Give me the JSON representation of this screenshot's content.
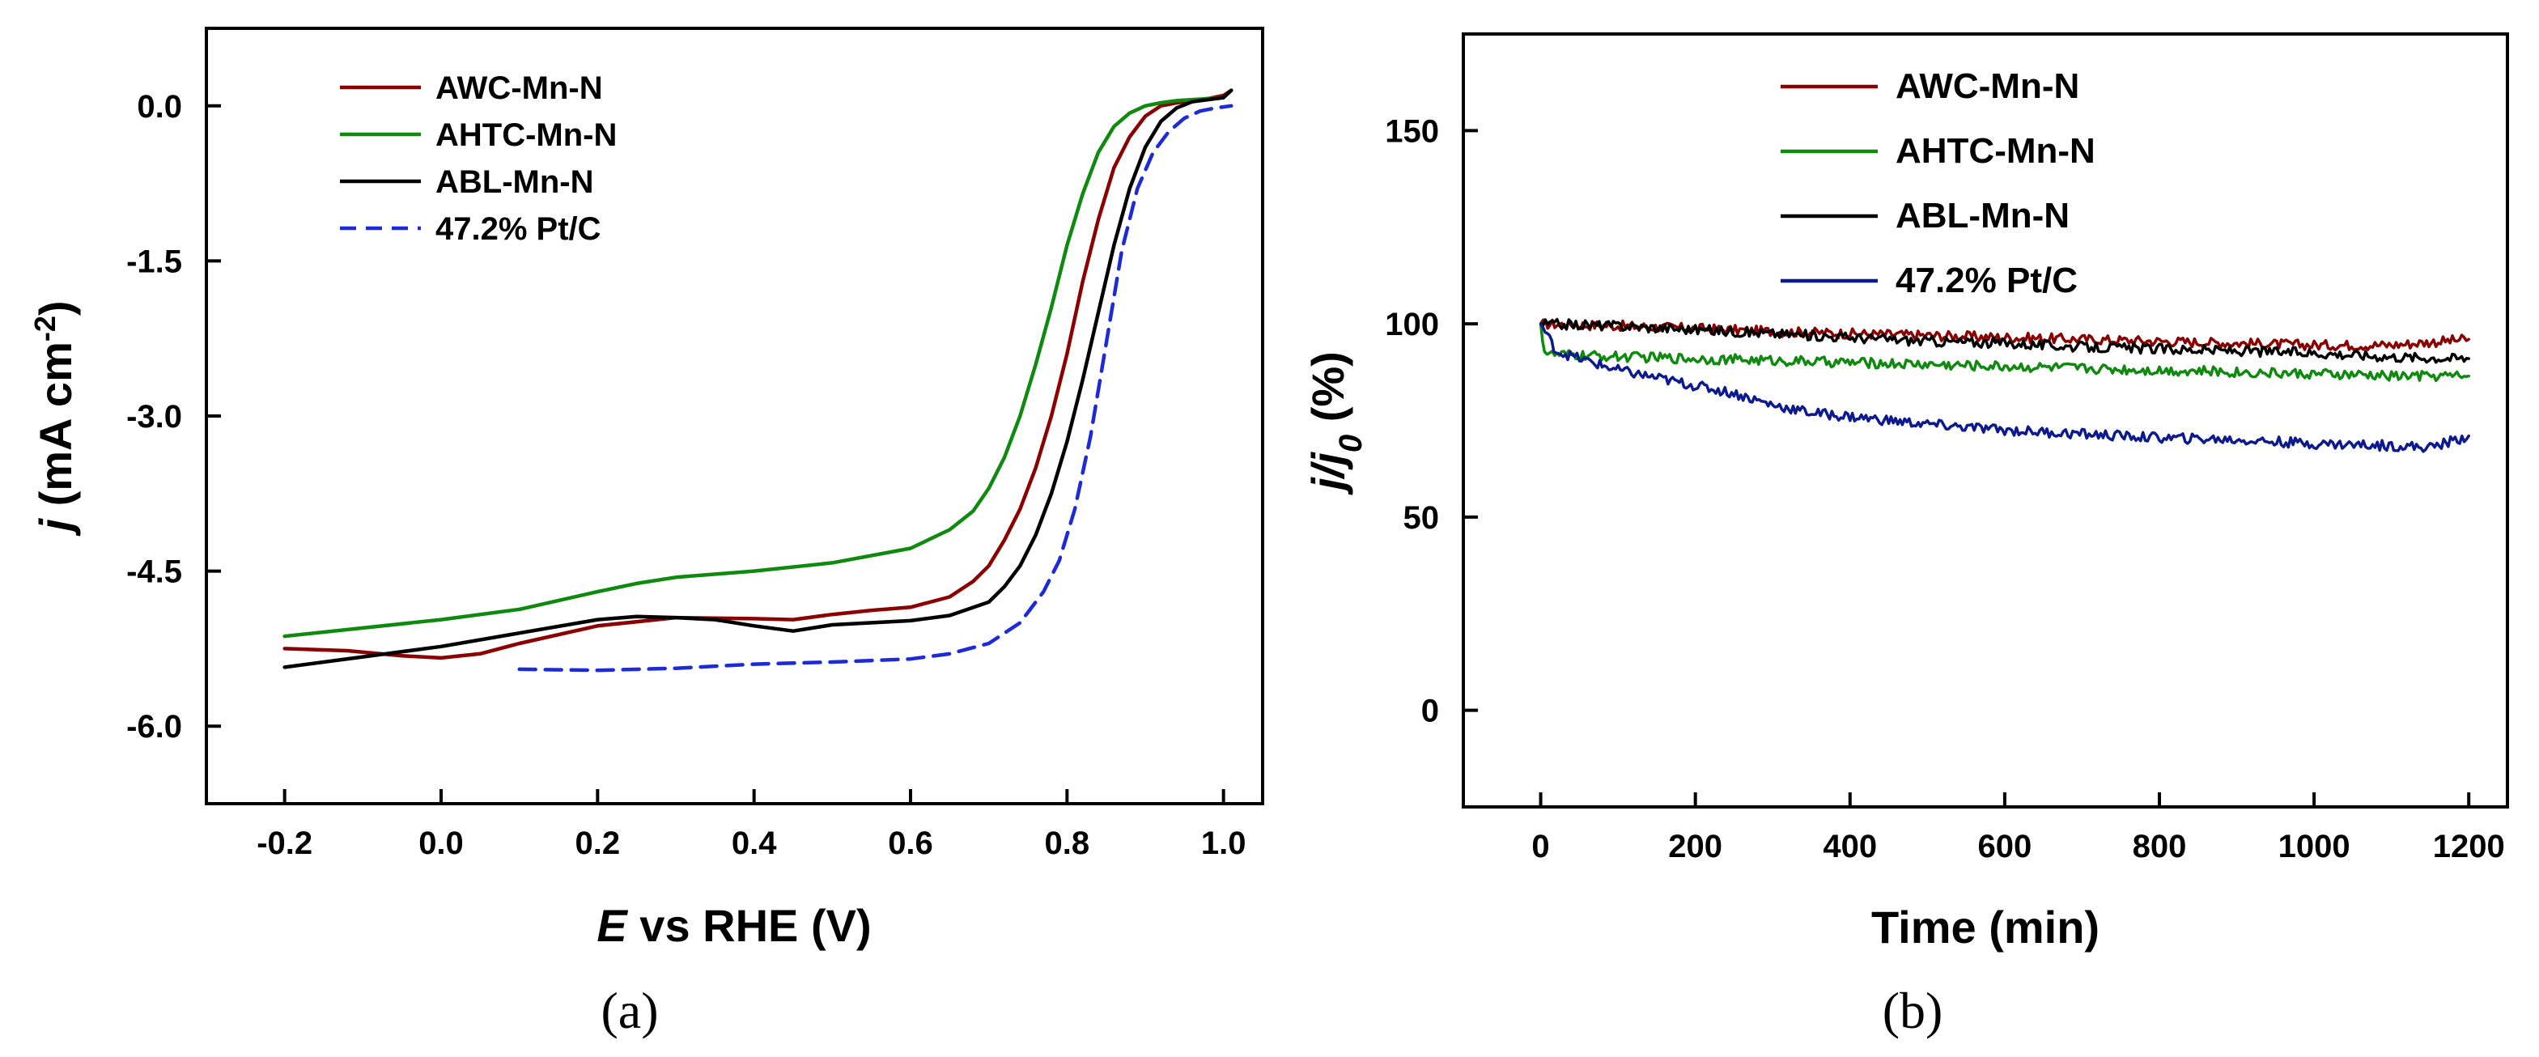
{
  "panels": [
    {
      "panel_label": "(a)",
      "chart_data": {
        "type": "line",
        "title": "",
        "xlabel_italic": "E",
        "xlabel_rest": " vs RHE (V)",
        "ylabel_italic": "j",
        "ylabel_rest": " (mA cm",
        "ylabel_sup": "-2",
        "ylabel_close": ")",
        "xlim": [
          -0.3,
          1.05
        ],
        "ylim": [
          -6.75,
          0.75
        ],
        "xticks": [
          -0.2,
          0.0,
          0.2,
          0.4,
          0.6,
          0.8,
          1.0
        ],
        "xtick_labels": [
          "-0.2",
          "0.0",
          "0.2",
          "0.4",
          "0.6",
          "0.8",
          "1.0"
        ],
        "yticks": [
          0.0,
          -1.5,
          -3.0,
          -4.5,
          -6.0
        ],
        "ytick_labels": [
          "0.0",
          "-1.5",
          "-3.0",
          "-4.5",
          "-6.0"
        ],
        "legend_position": "top-left",
        "series": [
          {
            "name": "AWC-Mn-N",
            "color": "#8b0000",
            "dash": "solid",
            "x": [
              -0.2,
              -0.12,
              -0.05,
              0.0,
              0.05,
              0.1,
              0.2,
              0.3,
              0.4,
              0.45,
              0.5,
              0.55,
              0.6,
              0.65,
              0.68,
              0.7,
              0.72,
              0.74,
              0.76,
              0.78,
              0.8,
              0.82,
              0.84,
              0.86,
              0.88,
              0.9,
              0.92,
              0.94,
              0.96,
              0.98,
              1.0,
              1.01
            ],
            "y": [
              -5.25,
              -5.27,
              -5.32,
              -5.34,
              -5.3,
              -5.2,
              -5.03,
              -4.95,
              -4.96,
              -4.97,
              -4.92,
              -4.88,
              -4.85,
              -4.75,
              -4.6,
              -4.45,
              -4.2,
              -3.9,
              -3.5,
              -3.0,
              -2.4,
              -1.7,
              -1.1,
              -0.6,
              -0.3,
              -0.1,
              0.0,
              0.03,
              0.05,
              0.07,
              0.1,
              0.15
            ]
          },
          {
            "name": "AHTC-Mn-N",
            "color": "#0f8a0f",
            "dash": "solid",
            "x": [
              -0.2,
              -0.1,
              0.0,
              0.1,
              0.2,
              0.25,
              0.3,
              0.4,
              0.5,
              0.6,
              0.65,
              0.68,
              0.7,
              0.72,
              0.74,
              0.76,
              0.78,
              0.8,
              0.82,
              0.84,
              0.86,
              0.88,
              0.9,
              0.92,
              0.94,
              0.96,
              0.98,
              1.0
            ],
            "y": [
              -5.13,
              -5.05,
              -4.97,
              -4.87,
              -4.7,
              -4.62,
              -4.56,
              -4.5,
              -4.42,
              -4.28,
              -4.1,
              -3.92,
              -3.7,
              -3.4,
              -3.0,
              -2.5,
              -1.95,
              -1.35,
              -0.85,
              -0.45,
              -0.2,
              -0.07,
              0.0,
              0.03,
              0.05,
              0.06,
              0.07,
              0.08
            ]
          },
          {
            "name": "ABL-Mn-N",
            "color": "#000000",
            "dash": "solid",
            "x": [
              -0.2,
              -0.1,
              0.0,
              0.1,
              0.2,
              0.25,
              0.3,
              0.35,
              0.4,
              0.45,
              0.5,
              0.6,
              0.65,
              0.7,
              0.72,
              0.74,
              0.76,
              0.78,
              0.8,
              0.82,
              0.84,
              0.86,
              0.88,
              0.9,
              0.92,
              0.94,
              0.96,
              0.98,
              1.0,
              1.01
            ],
            "y": [
              -5.43,
              -5.33,
              -5.23,
              -5.1,
              -4.97,
              -4.94,
              -4.95,
              -4.97,
              -5.03,
              -5.08,
              -5.02,
              -4.98,
              -4.93,
              -4.8,
              -4.65,
              -4.45,
              -4.15,
              -3.75,
              -3.25,
              -2.65,
              -2.0,
              -1.35,
              -0.8,
              -0.4,
              -0.15,
              -0.02,
              0.04,
              0.06,
              0.08,
              0.15
            ]
          },
          {
            "name": "47.2% Pt/C",
            "color": "#1c2bd6",
            "dash": "dashed",
            "x": [
              0.1,
              0.2,
              0.3,
              0.4,
              0.5,
              0.6,
              0.65,
              0.7,
              0.74,
              0.77,
              0.79,
              0.81,
              0.83,
              0.85,
              0.87,
              0.89,
              0.91,
              0.93,
              0.95,
              0.97,
              0.99,
              1.01
            ],
            "y": [
              -5.45,
              -5.46,
              -5.44,
              -5.4,
              -5.38,
              -5.35,
              -5.3,
              -5.2,
              -5.0,
              -4.7,
              -4.4,
              -3.9,
              -3.2,
              -2.3,
              -1.4,
              -0.8,
              -0.45,
              -0.25,
              -0.12,
              -0.05,
              -0.02,
              0.0
            ]
          }
        ]
      }
    },
    {
      "panel_label": "(b)",
      "chart_data": {
        "type": "line",
        "title": "",
        "xlabel": "Time (min)",
        "ylabel_italic": "j/j",
        "ylabel_sub": "0",
        "ylabel_rest": " (%)",
        "xlim": [
          -100,
          1250
        ],
        "ylim": [
          -25,
          175
        ],
        "xticks": [
          0,
          200,
          400,
          600,
          800,
          1000,
          1200
        ],
        "xtick_labels": [
          "0",
          "200",
          "400",
          "600",
          "800",
          "1000",
          "1200"
        ],
        "yticks": [
          0,
          50,
          100,
          150
        ],
        "ytick_labels": [
          "0",
          "50",
          "100",
          "150"
        ],
        "legend_position": "top-center",
        "series": [
          {
            "name": "AWC-Mn-N",
            "color": "#8b0000",
            "dash": "solid",
            "x": [
              0,
              100,
              200,
              300,
              400,
              500,
              600,
              700,
              800,
              900,
              1000,
              1100,
              1200
            ],
            "y": [
              100,
              99.5,
              98.8,
              98,
              97.5,
              97,
              96.5,
              96,
              95.5,
              95,
              94.5,
              94.5,
              96
            ]
          },
          {
            "name": "AHTC-Mn-N",
            "color": "#0f8a0f",
            "dash": "solid",
            "x": [
              0,
              5,
              15,
              100,
              200,
              300,
              400,
              500,
              600,
              700,
              800,
              900,
              1000,
              1100,
              1200
            ],
            "y": [
              100,
              93,
              92,
              91.5,
              91,
              90.5,
              90,
              89.5,
              89,
              88.5,
              88,
              87.5,
              87,
              86.5,
              86.5
            ]
          },
          {
            "name": "ABL-Mn-N",
            "color": "#000000",
            "dash": "solid",
            "x": [
              0,
              100,
              200,
              300,
              400,
              500,
              600,
              700,
              800,
              900,
              1000,
              1100,
              1200
            ],
            "y": [
              100,
              99.5,
              98.5,
              97.5,
              96.5,
              95.5,
              95,
              94,
              93.5,
              93,
              92.5,
              91.5,
              91
            ]
          },
          {
            "name": "47.2% Pt/C",
            "color": "#0d1a8f",
            "dash": "solid",
            "x": [
              0,
              20,
              50,
              100,
              150,
              200,
              250,
              300,
              350,
              400,
              450,
              500,
              600,
              700,
              800,
              900,
              1000,
              1100,
              1150,
              1200
            ],
            "y": [
              100,
              93,
              91,
              88,
              86,
              84,
              82,
              79,
              77,
              76,
              75,
              74,
              72.5,
              71.5,
              70.5,
              70,
              69,
              68.5,
              68,
              71
            ]
          }
        ]
      }
    }
  ]
}
